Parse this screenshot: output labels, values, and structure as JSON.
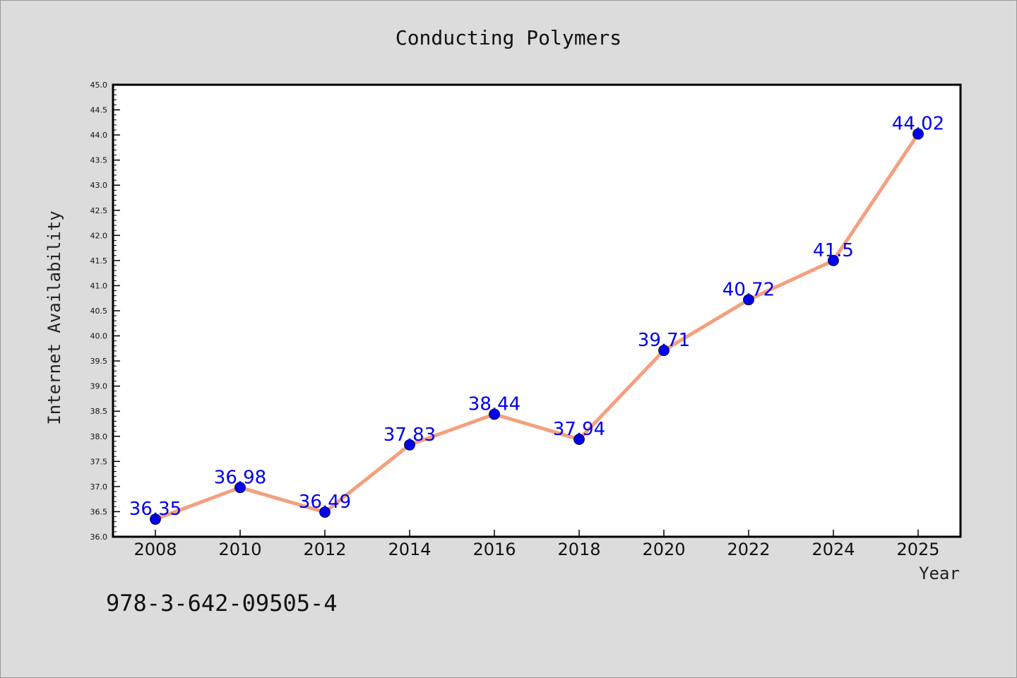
{
  "chart_data": {
    "type": "line",
    "title": "Conducting Polymers",
    "xlabel": "Year",
    "ylabel": "Internet Availability",
    "categories": [
      "2008",
      "2010",
      "2012",
      "2014",
      "2016",
      "2018",
      "2020",
      "2022",
      "2024",
      "2025"
    ],
    "series": [
      {
        "values": [
          36.35,
          36.98,
          36.49,
          37.83,
          38.44,
          37.94,
          39.71,
          40.72,
          41.5,
          44.02
        ],
        "labels": [
          "36.35",
          "36.98",
          "36.49",
          "37.83",
          "38.44",
          "37.94",
          "39.71",
          "40.72",
          "41.5",
          "44.02"
        ]
      }
    ],
    "ylim": [
      36.0,
      45.0
    ],
    "yticks": [
      "36.0",
      "36.5",
      "37.0",
      "37.5",
      "38.0",
      "38.5",
      "39.0",
      "39.5",
      "40.0",
      "40.5",
      "41.0",
      "41.5",
      "42.0",
      "42.5",
      "43.0",
      "43.5",
      "44.0",
      "44.5",
      "45.0"
    ],
    "grid": false,
    "colors": {
      "line": "#f4a07e",
      "marker": "#0000ee",
      "label": "#0000ee",
      "background": "#dcdcdc",
      "plot_area": "#ffffff"
    }
  },
  "footnote": "978-3-642-09505-4"
}
